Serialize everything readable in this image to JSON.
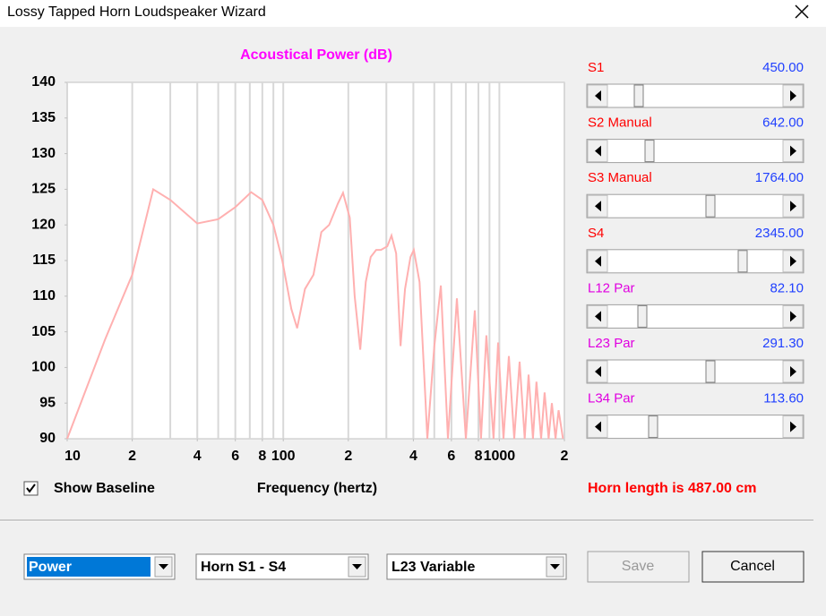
{
  "window": {
    "title": "Lossy Tapped Horn Loudspeaker Wizard"
  },
  "chart_data": {
    "type": "line",
    "title": "Acoustical Power (dB)",
    "x_label": "Frequency (hertz)",
    "x": [
      10,
      15,
      20,
      25,
      30,
      40,
      50,
      60,
      71,
      80,
      90,
      99,
      109,
      116,
      126,
      138,
      150,
      163,
      179,
      189,
      203,
      214,
      227,
      241,
      254,
      269,
      283,
      303,
      317,
      333,
      349,
      366,
      388,
      402,
      427,
      454,
      464,
      500,
      536,
      578,
      636,
      700,
      770,
      822,
      871,
      940,
      987,
      1045,
      1107,
      1172,
      1241,
      1310,
      1365,
      1430,
      1485,
      1560,
      1620,
      1690,
      1750,
      1820,
      1880,
      1970
    ],
    "values": [
      90,
      104,
      113,
      125,
      123.5,
      120.2,
      120.8,
      122.5,
      124.6,
      123.5,
      120,
      115,
      108.2,
      105.5,
      111,
      113,
      119,
      120,
      123,
      124.5,
      121,
      110,
      102.5,
      112,
      115.5,
      116.5,
      116.5,
      117,
      118.5,
      116,
      103,
      111,
      115.5,
      116.5,
      112,
      96,
      90,
      103,
      111.5,
      90,
      109.7,
      90,
      108,
      90,
      104.5,
      90,
      103.5,
      90,
      101.6,
      90,
      100.8,
      90,
      99,
      90,
      98,
      90,
      96.5,
      90,
      95,
      90,
      94,
      90
    ],
    "color": "#ffb0b0",
    "xlim": [
      10,
      2000
    ],
    "ylim": [
      90,
      140
    ],
    "log_x": true,
    "grid": true,
    "yticks": [
      90,
      95,
      100,
      105,
      110,
      115,
      120,
      125,
      130,
      135,
      140
    ],
    "xticks": [
      10,
      {
        "value": 20,
        "label": "2"
      },
      {
        "value": 40,
        "label": "4"
      },
      {
        "value": 60,
        "label": "6"
      },
      {
        "value": 80,
        "label": "8"
      },
      100,
      {
        "value": 200,
        "label": "2"
      },
      {
        "value": 400,
        "label": "4"
      },
      {
        "value": 600,
        "label": "6"
      },
      {
        "value": 800,
        "label": "8"
      },
      1000,
      {
        "value": 2000,
        "label": "2"
      }
    ],
    "xgrid": [
      10,
      20,
      30,
      40,
      50,
      60,
      70,
      80,
      90,
      100,
      200,
      300,
      400,
      500,
      600,
      700,
      800,
      900,
      1000,
      2000
    ]
  },
  "sliders": [
    {
      "label": "S1",
      "value": "450.00"
    },
    {
      "label": "S2 Manual",
      "value": "642.00"
    },
    {
      "label": "S3 Manual",
      "value": "1764.00"
    },
    {
      "label": "S4",
      "value": "2345.00"
    },
    {
      "label": "L12 Par",
      "value": "82.10"
    },
    {
      "label": "L23 Par",
      "value": "291.30"
    },
    {
      "label": "L34 Par",
      "value": "113.60"
    }
  ],
  "checkbox": {
    "label": "Show Baseline"
  },
  "status": "Horn length is 487.00 cm",
  "dropdowns": [
    "Power",
    "Horn S1 - S4",
    "L23 Variable"
  ],
  "buttons": [
    "Save",
    "Cancel"
  ]
}
